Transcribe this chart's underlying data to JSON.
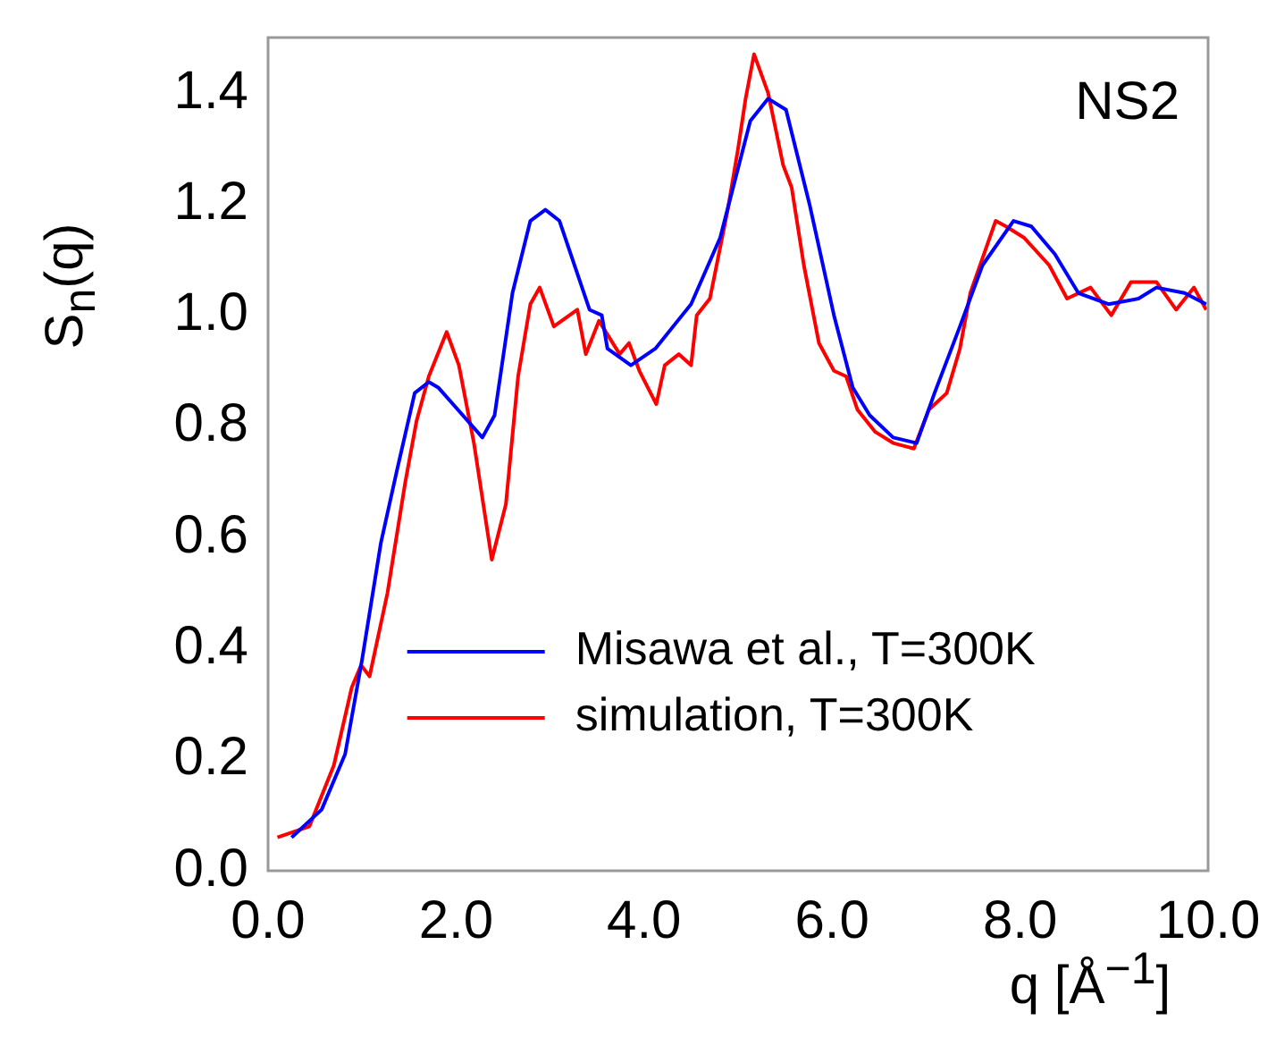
{
  "chart_data": {
    "type": "line",
    "xlabel": "q [Å$^{−1}$]",
    "ylabel": "S$_{n}$(q)",
    "annotations": [
      "NS2"
    ],
    "xlim": [
      0,
      10
    ],
    "ylim": [
      0,
      1.5
    ],
    "xticks": [
      {
        "value": 0,
        "label": "0.0"
      },
      {
        "value": 2,
        "label": "2.0"
      },
      {
        "value": 4,
        "label": "4.0"
      },
      {
        "value": 6,
        "label": "6.0"
      },
      {
        "value": 8,
        "label": "8.0"
      },
      {
        "value": 10,
        "label": "10.0"
      }
    ],
    "yticks": [
      {
        "value": 0,
        "label": "0.0"
      },
      {
        "value": 0.2,
        "label": "0.2"
      },
      {
        "value": 0.4,
        "label": "0.4"
      },
      {
        "value": 0.6,
        "label": "0.6"
      },
      {
        "value": 0.8,
        "label": "0.8"
      },
      {
        "value": 1,
        "label": "1.0"
      },
      {
        "value": 1.2,
        "label": "1.2"
      },
      {
        "value": 1.4,
        "label": "1.4"
      }
    ],
    "grid": false,
    "legend": "bottom right",
    "marker": "none",
    "line_style": "solid",
    "series": [
      {
        "name": "Misawa et al., T=300K",
        "color": "#0000ff",
        "x": [
          0.25,
          0.57,
          0.82,
          1.0,
          1.2,
          1.37,
          1.56,
          1.71,
          1.81,
          2.28,
          2.41,
          2.6,
          2.79,
          2.95,
          3.1,
          3.42,
          3.55,
          3.61,
          3.86,
          4.12,
          4.5,
          4.81,
          5.13,
          5.32,
          5.51,
          5.76,
          6.02,
          6.22,
          6.4,
          6.65,
          6.9,
          7.09,
          7.36,
          7.6,
          7.93,
          8.12,
          8.37,
          8.62,
          8.94,
          9.26,
          9.45,
          9.75,
          9.98
        ],
        "values": [
          0.06,
          0.11,
          0.21,
          0.38,
          0.59,
          0.72,
          0.86,
          0.88,
          0.87,
          0.78,
          0.82,
          1.04,
          1.17,
          1.19,
          1.17,
          1.01,
          1.0,
          0.94,
          0.91,
          0.94,
          1.02,
          1.14,
          1.35,
          1.39,
          1.37,
          1.2,
          1.0,
          0.87,
          0.82,
          0.78,
          0.77,
          0.86,
          0.98,
          1.09,
          1.17,
          1.16,
          1.11,
          1.04,
          1.02,
          1.03,
          1.05,
          1.04,
          1.02
        ]
      },
      {
        "name": "simulation, T=300K",
        "color": "#ff0000",
        "x": [
          0.1,
          0.44,
          0.7,
          0.89,
          0.99,
          1.08,
          1.27,
          1.46,
          1.58,
          1.71,
          1.9,
          2.03,
          2.19,
          2.38,
          2.53,
          2.66,
          2.79,
          2.89,
          3.04,
          3.29,
          3.38,
          3.52,
          3.74,
          3.84,
          3.95,
          4.13,
          4.22,
          4.37,
          4.5,
          4.56,
          4.7,
          4.89,
          5.0,
          5.08,
          5.17,
          5.32,
          5.48,
          5.57,
          5.7,
          5.86,
          6.02,
          6.15,
          6.27,
          6.46,
          6.65,
          6.87,
          7.03,
          7.22,
          7.36,
          7.47,
          7.74,
          7.85,
          8.04,
          8.31,
          8.5,
          8.75,
          8.97,
          9.18,
          9.45,
          9.66,
          9.85,
          9.98
        ],
        "values": [
          0.06,
          0.08,
          0.19,
          0.33,
          0.37,
          0.35,
          0.5,
          0.7,
          0.81,
          0.89,
          0.97,
          0.91,
          0.77,
          0.56,
          0.66,
          0.89,
          1.02,
          1.05,
          0.98,
          1.01,
          0.93,
          0.99,
          0.93,
          0.95,
          0.9,
          0.84,
          0.91,
          0.93,
          0.91,
          1.0,
          1.03,
          1.19,
          1.3,
          1.39,
          1.47,
          1.4,
          1.27,
          1.23,
          1.09,
          0.95,
          0.9,
          0.89,
          0.83,
          0.79,
          0.77,
          0.76,
          0.83,
          0.86,
          0.94,
          1.04,
          1.17,
          1.16,
          1.14,
          1.09,
          1.03,
          1.05,
          1.0,
          1.06,
          1.06,
          1.01,
          1.05,
          1.01
        ]
      }
    ]
  }
}
